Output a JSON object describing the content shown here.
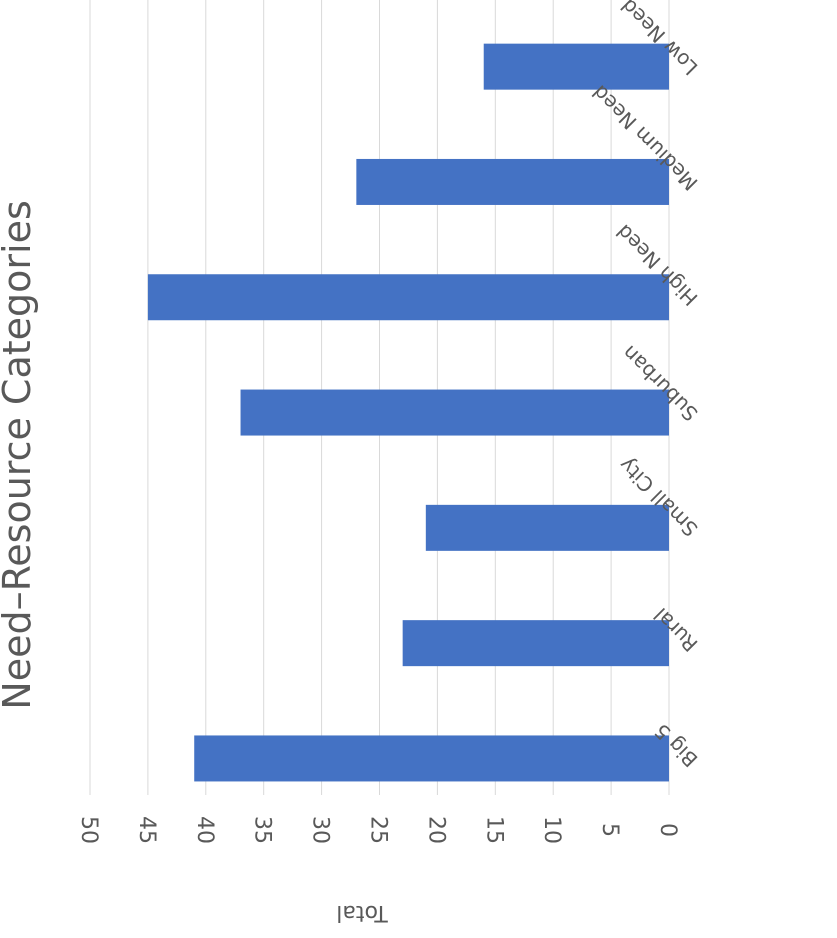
{
  "chart_data": {
    "type": "bar",
    "orientation": "horizontal",
    "title": "Need–Resource Categories",
    "xlabel": "Total",
    "ylabel": "",
    "categories": [
      "Big 5",
      "Rural",
      "Small City",
      "Suburban",
      "High Need",
      "Medium Need",
      "Low Need"
    ],
    "values": [
      41,
      23,
      21,
      37,
      45,
      27,
      16
    ],
    "xlim": [
      0,
      50
    ],
    "xticks": [
      0,
      5,
      10,
      15,
      20,
      25,
      30,
      35,
      40,
      45,
      50
    ],
    "grid": true,
    "legend": "none",
    "rendered_rotation": "180deg (image appears upside down)",
    "colors": {
      "bar": "#4472c4",
      "grid": "#d9d9d9",
      "text": "#595959"
    }
  }
}
